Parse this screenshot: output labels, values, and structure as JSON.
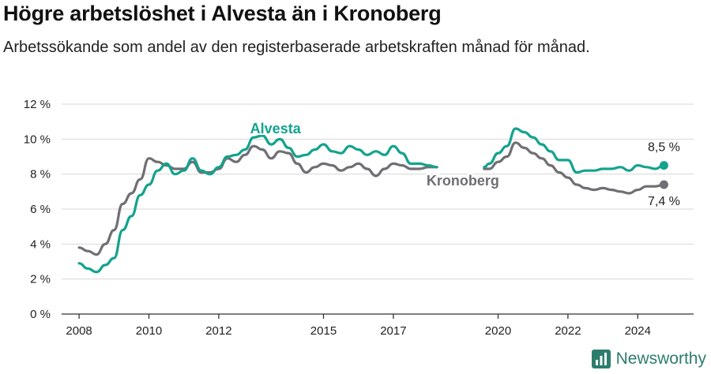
{
  "title": "Högre arbetslöshet i Alvesta än i Kronoberg",
  "subtitle": "Arbetssökande som andel av den registerbaserade arbetskraften månad för månad.",
  "brand": "Newsworthy",
  "colors": {
    "alvesta": "#13a38e",
    "kronoberg": "#6f6f74",
    "grid": "#d7d7d7",
    "axis": "#333333",
    "brand": "#2d7d6e"
  },
  "chart_data": {
    "type": "line",
    "title": "Högre arbetslöshet i Alvesta än i Kronoberg",
    "subtitle": "Arbetssökande som andel av den registerbaserade arbetskraften månad för månad.",
    "xlabel": "",
    "ylabel": "",
    "x_ticks": [
      "2008",
      "2010",
      "2012",
      "2015",
      "2017",
      "2020",
      "2022",
      "2024"
    ],
    "x_tick_values": [
      2008,
      2010,
      2012,
      2015,
      2017,
      2020,
      2022,
      2024
    ],
    "y_ticks": [
      "0 %",
      "2 %",
      "4 %",
      "6 %",
      "8 %",
      "10 %",
      "12 %"
    ],
    "y_tick_values": [
      0,
      2,
      4,
      6,
      8,
      10,
      12
    ],
    "ylim": [
      0,
      12
    ],
    "xlim": [
      2007.5,
      2025.6
    ],
    "grid": "horizontal",
    "legend": "direct labels on lines",
    "gap": [
      2018.3,
      2019.6
    ],
    "series": [
      {
        "name": "Alvesta",
        "color": "#13a38e",
        "end_label": "8,5 %",
        "x": [
          2008.0,
          2008.25,
          2008.5,
          2008.75,
          2009.0,
          2009.25,
          2009.5,
          2009.75,
          2010.0,
          2010.25,
          2010.5,
          2010.75,
          2011.0,
          2011.25,
          2011.5,
          2011.75,
          2012.0,
          2012.25,
          2012.5,
          2012.75,
          2013.0,
          2013.25,
          2013.5,
          2013.75,
          2014.0,
          2014.25,
          2014.5,
          2014.75,
          2015.0,
          2015.25,
          2015.5,
          2015.75,
          2016.0,
          2016.25,
          2016.5,
          2016.75,
          2017.0,
          2017.25,
          2017.5,
          2017.75,
          2018.0,
          2018.25,
          2019.6,
          2019.75,
          2020.0,
          2020.25,
          2020.5,
          2020.75,
          2021.0,
          2021.25,
          2021.5,
          2021.75,
          2022.0,
          2022.25,
          2022.5,
          2022.75,
          2023.0,
          2023.25,
          2023.5,
          2023.75,
          2024.0,
          2024.25,
          2024.5,
          2024.75
        ],
        "values": [
          2.9,
          2.6,
          2.4,
          2.8,
          3.2,
          4.8,
          5.6,
          6.8,
          7.4,
          8.2,
          8.6,
          8.0,
          8.2,
          8.9,
          8.2,
          8.0,
          8.4,
          9.0,
          9.1,
          9.4,
          10.1,
          10.2,
          9.7,
          10.0,
          9.5,
          9.0,
          9.1,
          9.4,
          9.7,
          9.3,
          9.2,
          9.6,
          9.4,
          9.1,
          9.3,
          9.1,
          9.6,
          9.2,
          8.6,
          8.6,
          8.5,
          8.4,
          8.4,
          8.6,
          9.2,
          9.6,
          10.6,
          10.4,
          10.1,
          9.7,
          9.3,
          8.8,
          8.8,
          8.1,
          8.2,
          8.2,
          8.3,
          8.3,
          8.4,
          8.2,
          8.5,
          8.4,
          8.3,
          8.5
        ],
        "last_value": 8.5
      },
      {
        "name": "Kronoberg",
        "color": "#6f6f74",
        "end_label": "7,4 %",
        "x": [
          2008.0,
          2008.25,
          2008.5,
          2008.75,
          2009.0,
          2009.25,
          2009.5,
          2009.75,
          2010.0,
          2010.25,
          2010.5,
          2010.75,
          2011.0,
          2011.25,
          2011.5,
          2011.75,
          2012.0,
          2012.25,
          2012.5,
          2012.75,
          2013.0,
          2013.25,
          2013.5,
          2013.75,
          2014.0,
          2014.25,
          2014.5,
          2014.75,
          2015.0,
          2015.25,
          2015.5,
          2015.75,
          2016.0,
          2016.25,
          2016.5,
          2016.75,
          2017.0,
          2017.25,
          2017.5,
          2017.75,
          2018.0,
          2018.25,
          2019.6,
          2019.75,
          2020.0,
          2020.25,
          2020.5,
          2020.75,
          2021.0,
          2021.25,
          2021.5,
          2021.75,
          2022.0,
          2022.25,
          2022.5,
          2022.75,
          2023.0,
          2023.25,
          2023.5,
          2023.75,
          2024.0,
          2024.25,
          2024.5,
          2024.75
        ],
        "values": [
          3.8,
          3.6,
          3.4,
          4.0,
          4.8,
          6.3,
          6.9,
          7.7,
          8.9,
          8.7,
          8.5,
          8.3,
          8.3,
          8.7,
          8.1,
          8.1,
          8.3,
          8.9,
          8.7,
          9.1,
          9.6,
          9.4,
          8.9,
          9.3,
          9.2,
          8.6,
          8.1,
          8.4,
          8.6,
          8.5,
          8.2,
          8.4,
          8.6,
          8.3,
          7.9,
          8.3,
          8.6,
          8.5,
          8.3,
          8.3,
          8.4,
          8.4,
          8.3,
          8.3,
          8.7,
          9.0,
          9.8,
          9.5,
          9.2,
          8.9,
          8.5,
          8.1,
          7.8,
          7.4,
          7.2,
          7.1,
          7.2,
          7.1,
          7.0,
          6.9,
          7.1,
          7.3,
          7.3,
          7.4
        ],
        "last_value": 7.4
      }
    ]
  }
}
